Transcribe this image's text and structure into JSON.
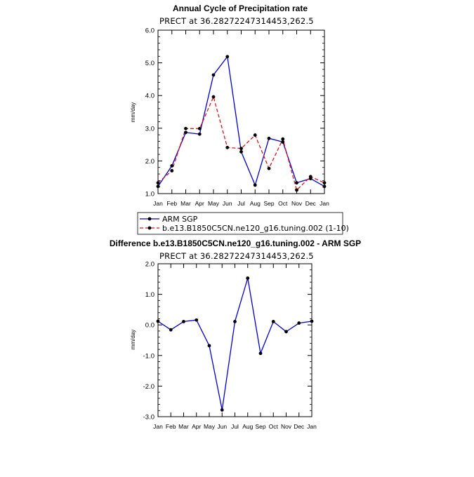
{
  "chart_data": [
    {
      "type": "line",
      "title": "Annual Cycle of Precipitation rate",
      "subtitle": "PRECT at 36.28272247314453,262.5",
      "xlabel": "",
      "ylabel": "mm/day",
      "ylim": [
        1.0,
        6.0
      ],
      "yticks": [
        "1.0",
        "2.0",
        "3.0",
        "4.0",
        "5.0",
        "6.0"
      ],
      "categories": [
        "Jan",
        "Feb",
        "Mar",
        "Apr",
        "May",
        "Jun",
        "Jul",
        "Aug",
        "Sep",
        "Oct",
        "Nov",
        "Dec",
        "Jan"
      ],
      "series": [
        {
          "name": "ARM SGP",
          "color": "#0000dd",
          "style": "solid",
          "values": [
            1.22,
            1.85,
            2.87,
            2.82,
            4.63,
            5.19,
            2.28,
            1.26,
            2.69,
            2.58,
            1.33,
            1.46,
            1.22
          ]
        },
        {
          "name": "b.e13.B1850C5CN.ne120_g16.tuning.002 (1-10)",
          "color": "#ee1111",
          "style": "dashed",
          "values": [
            1.33,
            1.7,
            2.99,
            2.99,
            3.96,
            2.41,
            2.38,
            2.79,
            1.77,
            2.67,
            1.11,
            1.52,
            1.33
          ]
        }
      ],
      "legend": "below"
    },
    {
      "type": "line",
      "title": "Difference b.e13.B1850C5CN.ne120_g16.tuning.002 - ARM SGP",
      "subtitle": "PRECT at 36.28272247314453,262.5",
      "xlabel": "",
      "ylabel": "mm/day",
      "ylim": [
        -3.0,
        2.0
      ],
      "yticks": [
        "-3.0",
        "-2.0",
        "-1.0",
        "0.0",
        "1.0",
        "2.0"
      ],
      "categories": [
        "Jan",
        "Feb",
        "Mar",
        "Apr",
        "May",
        "Jun",
        "Jul",
        "Aug",
        "Sep",
        "Oct",
        "Nov",
        "Dec",
        "Jan"
      ],
      "series": [
        {
          "color": "#0000dd",
          "style": "solid",
          "values": [
            0.12,
            -0.16,
            0.11,
            0.16,
            -0.68,
            -2.78,
            0.11,
            1.53,
            -0.93,
            0.11,
            -0.22,
            0.06,
            0.12
          ]
        }
      ]
    }
  ]
}
